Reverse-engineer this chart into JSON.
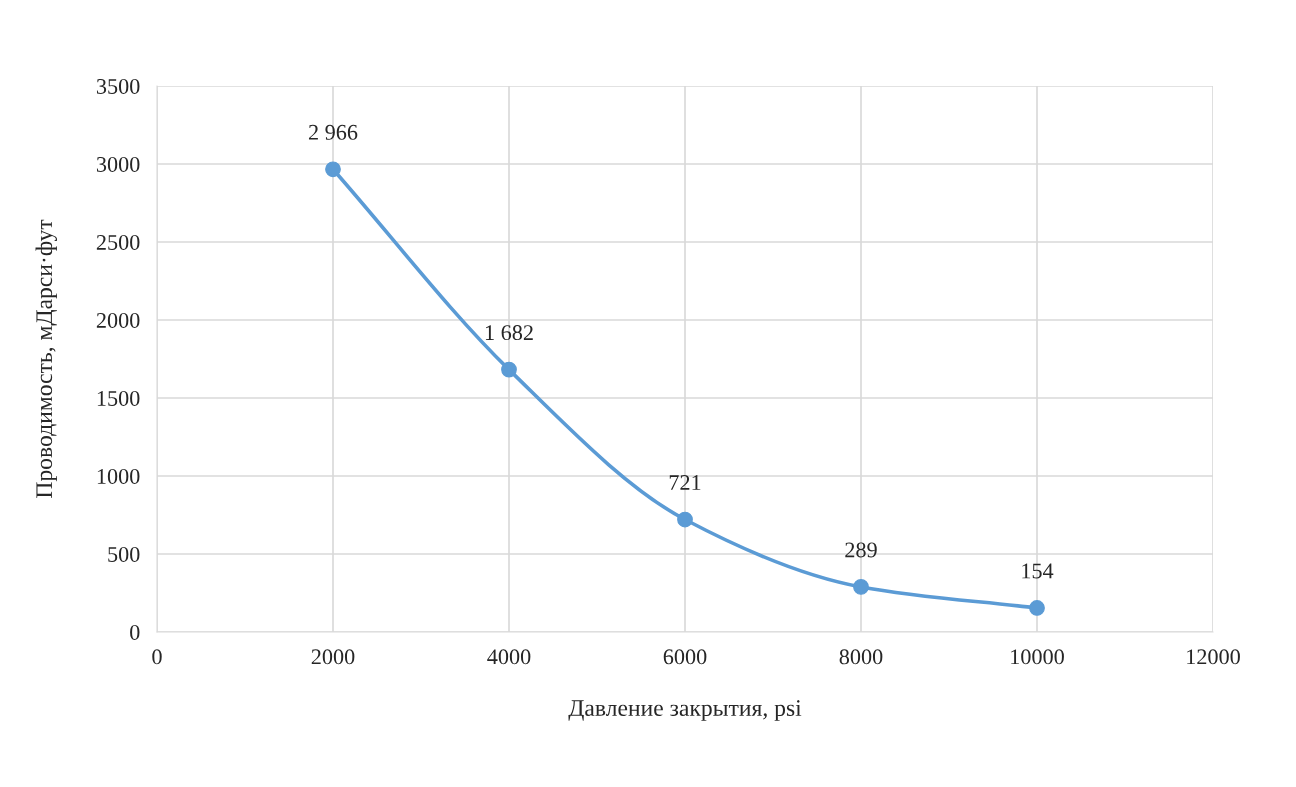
{
  "chart_data": {
    "type": "line",
    "xlabel": "Давление закрытия, psi",
    "ylabel": "Проводимость, мДарси·фут",
    "x": [
      2000,
      4000,
      6000,
      8000,
      10000
    ],
    "series": [
      {
        "color": "#5b9bd5",
        "values": [
          2966,
          1682,
          721,
          289,
          154
        ],
        "value_labels": [
          "2 966",
          "1 682",
          "721",
          "289",
          "154"
        ]
      }
    ],
    "xlim": [
      0,
      12000
    ],
    "xticks": [
      0,
      2000,
      4000,
      6000,
      8000,
      10000,
      12000
    ],
    "ylim": [
      0,
      3500
    ],
    "yticks": [
      0,
      500,
      1000,
      1500,
      2000,
      2500,
      3000,
      3500
    ],
    "grid": true,
    "marker": "circle",
    "line_style": "solid"
  }
}
